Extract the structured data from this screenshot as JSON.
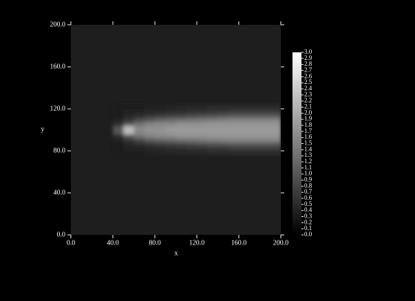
{
  "chart_data": {
    "type": "heatmap",
    "xlabel": "x",
    "ylabel": "y",
    "colormap": "gray",
    "xlim": [
      0,
      200
    ],
    "ylim": [
      0,
      200
    ],
    "xticks": [
      {
        "value": 0,
        "label": "0.0"
      },
      {
        "value": 40,
        "label": "40.0"
      },
      {
        "value": 80,
        "label": "80.0"
      },
      {
        "value": 120,
        "label": "120.0"
      },
      {
        "value": 160,
        "label": "160.0"
      },
      {
        "value": 200,
        "label": "200.0"
      }
    ],
    "yticks": [
      {
        "value": 0,
        "label": "0.0"
      },
      {
        "value": 40,
        "label": "40.0"
      },
      {
        "value": 80,
        "label": "80.0"
      },
      {
        "value": 120,
        "label": "120.0"
      },
      {
        "value": 160,
        "label": "160.0"
      },
      {
        "value": 200,
        "label": "200.0"
      }
    ],
    "x": [
      40,
      50,
      60,
      70,
      80,
      90,
      100,
      110,
      120,
      130,
      140,
      150,
      160,
      170,
      180,
      190,
      200
    ],
    "y": [
      76,
      80,
      84,
      88,
      92,
      96,
      100,
      104,
      108,
      112,
      116,
      120,
      124
    ],
    "values": [
      [
        0.35,
        0.35,
        0.35,
        0.4,
        0.4,
        0.4,
        0.45,
        0.45,
        0.45,
        0.5,
        0.5,
        0.5,
        0.5,
        0.5,
        0.5,
        0.5
      ],
      [
        0.35,
        0.4,
        0.4,
        0.45,
        0.45,
        0.5,
        0.5,
        0.55,
        0.55,
        0.6,
        0.6,
        0.65,
        0.65,
        0.65,
        0.65,
        0.65
      ],
      [
        0.35,
        0.45,
        0.5,
        0.6,
        0.65,
        0.7,
        0.75,
        0.8,
        0.85,
        0.9,
        0.95,
        1.0,
        1.0,
        1.0,
        1.0,
        1.0
      ],
      [
        0.4,
        0.6,
        0.8,
        1.0,
        1.1,
        1.2,
        1.25,
        1.3,
        1.35,
        1.4,
        1.45,
        1.5,
        1.5,
        1.5,
        1.5,
        1.5
      ],
      [
        0.5,
        1.0,
        1.3,
        1.5,
        1.6,
        1.6,
        1.7,
        1.7,
        1.7,
        1.75,
        1.75,
        1.75,
        1.75,
        1.75,
        1.75,
        1.75
      ],
      [
        1.0,
        2.2,
        1.6,
        1.7,
        1.7,
        1.8,
        1.8,
        1.8,
        1.8,
        1.8,
        1.8,
        1.8,
        1.8,
        1.8,
        1.8,
        1.8
      ],
      [
        1.0,
        2.2,
        1.6,
        1.7,
        1.7,
        1.8,
        1.8,
        1.8,
        1.8,
        1.8,
        1.8,
        1.8,
        1.8,
        1.8,
        1.8,
        1.8
      ],
      [
        0.5,
        1.0,
        1.3,
        1.5,
        1.6,
        1.6,
        1.7,
        1.7,
        1.7,
        1.75,
        1.75,
        1.75,
        1.75,
        1.75,
        1.75,
        1.75
      ],
      [
        0.4,
        0.6,
        0.8,
        1.0,
        1.1,
        1.2,
        1.25,
        1.3,
        1.35,
        1.4,
        1.45,
        1.5,
        1.5,
        1.5,
        1.5,
        1.5
      ],
      [
        0.35,
        0.45,
        0.5,
        0.6,
        0.65,
        0.7,
        0.75,
        0.8,
        0.85,
        0.9,
        0.95,
        1.0,
        1.0,
        1.0,
        1.0,
        1.0
      ],
      [
        0.35,
        0.4,
        0.4,
        0.45,
        0.45,
        0.5,
        0.5,
        0.55,
        0.55,
        0.6,
        0.6,
        0.65,
        0.65,
        0.65,
        0.65,
        0.65
      ],
      [
        0.35,
        0.35,
        0.35,
        0.4,
        0.4,
        0.4,
        0.45,
        0.45,
        0.45,
        0.5,
        0.5,
        0.5,
        0.5,
        0.5,
        0.5,
        0.5
      ]
    ],
    "colorbar": {
      "lim": [
        0,
        3
      ],
      "ticks": [
        {
          "value": 0,
          "label": "0.0"
        },
        0.1,
        0.2,
        0.3,
        0.4,
        0.5,
        0.6,
        0.7,
        0.8,
        0.9,
        {
          "value": 1,
          "label": "1.0"
        },
        1.1,
        1.2,
        1.3,
        1.4,
        1.5,
        1.6,
        1.7,
        1.8,
        1.9,
        {
          "value": 2,
          "label": "2.0"
        },
        2.1,
        2.2,
        2.3,
        2.4,
        2.5,
        2.6,
        2.7,
        2.8,
        2.9,
        {
          "value": 3,
          "label": "3.0"
        }
      ]
    }
  }
}
